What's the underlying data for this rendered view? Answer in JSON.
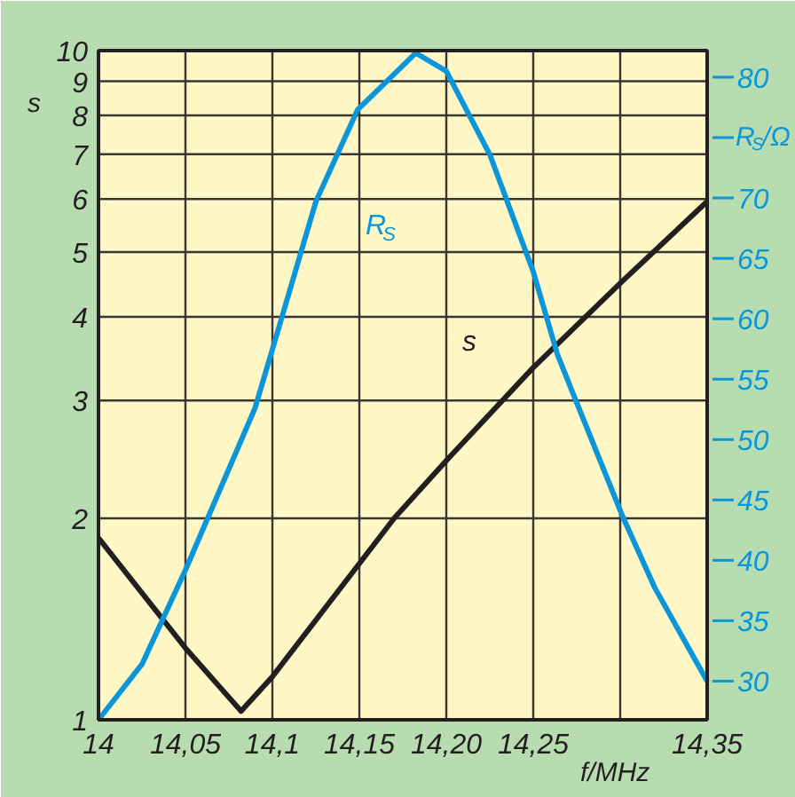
{
  "chart_data": {
    "type": "line",
    "xlabel": "f/MHz",
    "ylabel": "s",
    "y2label": "R$_{S}$/Ω",
    "xlim": [
      14,
      14.35
    ],
    "xticks": [
      {
        "value": 14,
        "label": "14"
      },
      {
        "value": 14.05,
        "label": "14,05"
      },
      {
        "value": 14.1,
        "label": "14,1"
      },
      {
        "value": 14.15,
        "label": "14,15"
      },
      {
        "value": 14.2,
        "label": "14,20"
      },
      {
        "value": 14.25,
        "label": "14,25"
      },
      {
        "value": 14.3,
        "label": null
      },
      {
        "value": 14.35,
        "label": "14,35"
      }
    ],
    "ylim": [
      1,
      10
    ],
    "yticks": [
      1,
      2,
      3,
      4,
      5,
      6,
      7,
      8,
      9,
      10
    ],
    "log": "y",
    "y2lim": [
      26.8,
      82.2
    ],
    "y2ticks": [
      30,
      35,
      40,
      45,
      50,
      55,
      60,
      65,
      70,
      {
        "value": 75,
        "label": null
      },
      80
    ],
    "grid": true,
    "line_style": "solid",
    "marker": "none",
    "series": [
      {
        "name": "s",
        "color": "#231f20",
        "x": [
          14,
          14.05,
          14.082,
          14.1,
          14.17,
          14.2,
          14.25,
          14.3,
          14.35
        ],
        "values": [
          1.87,
          1.28,
          1.03,
          1.16,
          2.0,
          2.44,
          3.36,
          4.49,
          5.95
        ]
      },
      {
        "name": "R$_{S}$",
        "color": "#0a96d8",
        "axis": "y2",
        "x": [
          14,
          14.025,
          14.05,
          14.09,
          14.105,
          14.125,
          14.149,
          14.1825,
          14.2,
          14.225,
          14.25,
          14.264,
          14.274,
          14.3015,
          14.32,
          14.35
        ],
        "values": [
          26.8,
          31.4,
          39.2,
          52.6,
          59.9,
          69.7,
          77.3,
          82.0,
          80.5,
          73.6,
          63.9,
          57.0,
          53.4,
          43.6,
          37.7,
          30.0
        ]
      }
    ]
  }
}
